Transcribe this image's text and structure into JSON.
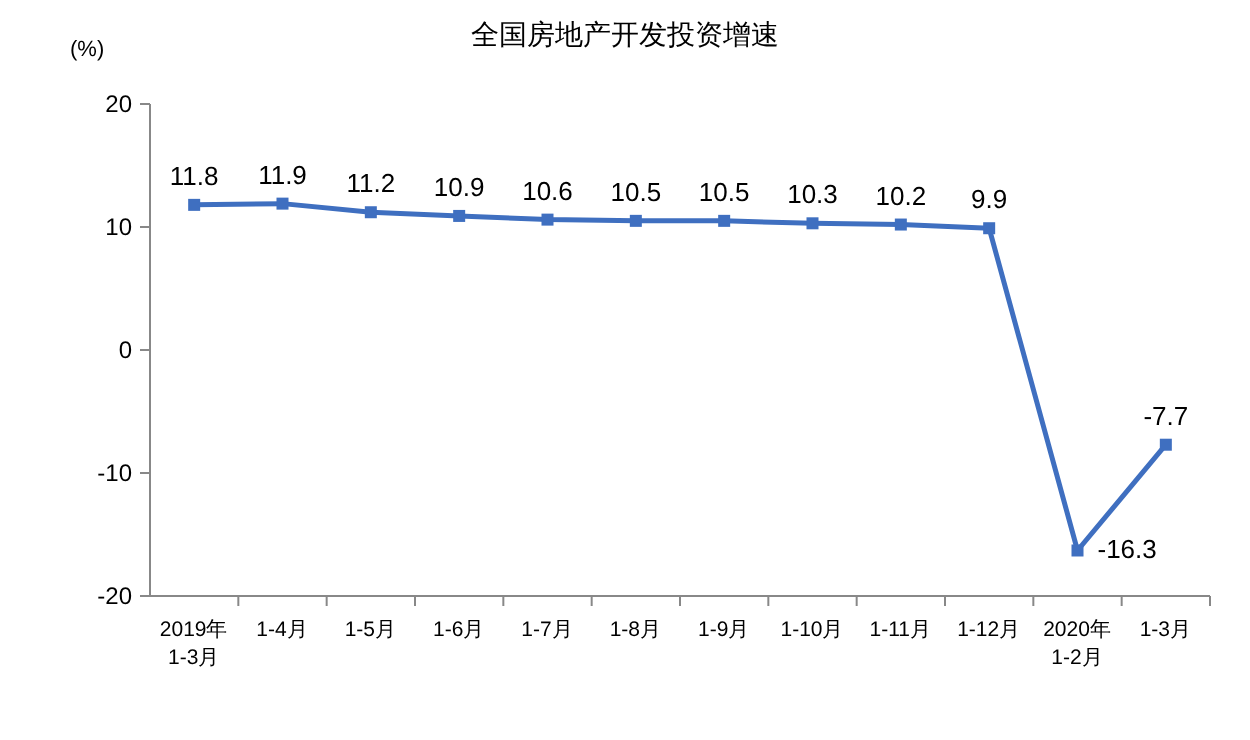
{
  "chart_data": {
    "type": "line",
    "title": "全国房地产开发投资增速",
    "ylabel": "(%)",
    "categories": [
      "2019年\n1-3月",
      "1-4月",
      "1-5月",
      "1-6月",
      "1-7月",
      "1-8月",
      "1-9月",
      "1-10月",
      "1-11月",
      "1-12月",
      "2020年\n1-2月",
      "1-3月"
    ],
    "series": [
      {
        "color": "#3f6fc0",
        "values": [
          11.8,
          11.9,
          11.2,
          10.9,
          10.6,
          10.5,
          10.5,
          10.3,
          10.2,
          9.9,
          -16.3,
          -7.7
        ]
      }
    ],
    "ylim": [
      -20,
      20
    ],
    "yticks": [
      -20,
      -10,
      0,
      10,
      20
    ],
    "grid": false,
    "marker": "square",
    "line_style": "solid",
    "data_labels": true
  }
}
